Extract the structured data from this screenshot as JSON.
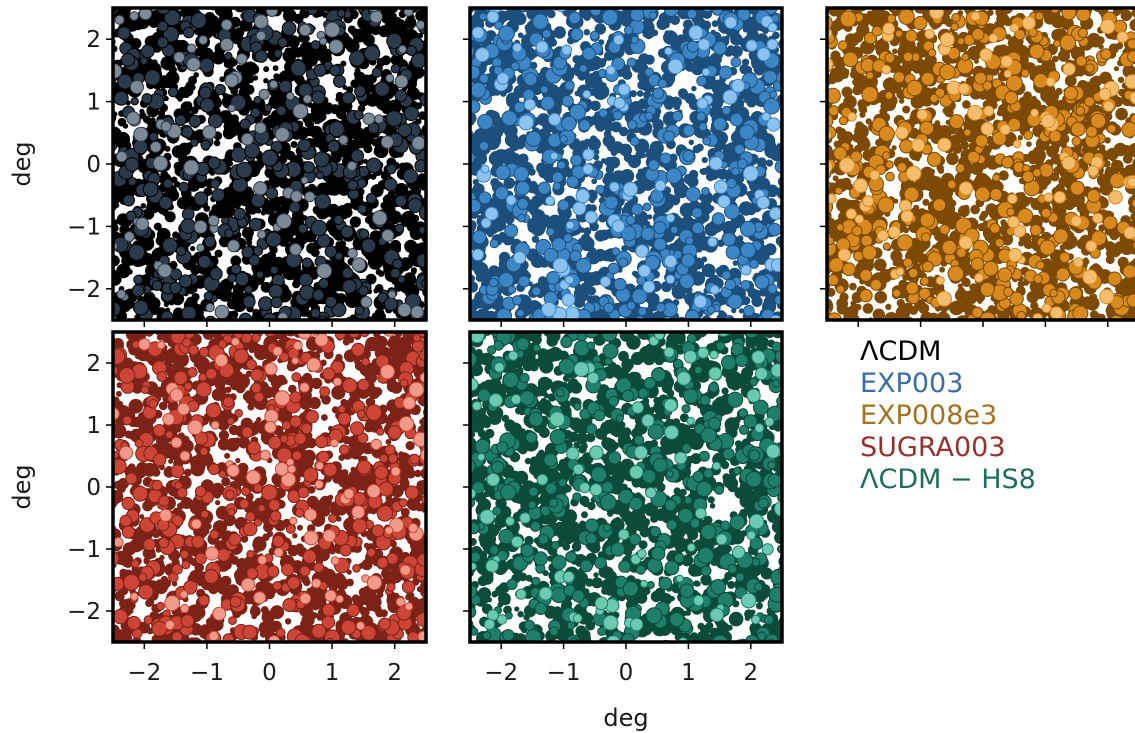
{
  "chart_data": [
    {
      "type": "scatter",
      "series": [
        {
          "name": "ΛCDM",
          "colors": {
            "dark": "#000000",
            "mid": "#2b3a4a",
            "light": "#7d8a96"
          }
        }
      ],
      "xlim": [
        -2.5,
        2.5
      ],
      "ylim": [
        -2.5,
        2.5
      ],
      "xticks": [
        -2,
        -1,
        0,
        1,
        2
      ],
      "yticks": [
        -2,
        -1,
        0,
        1,
        2
      ],
      "ylabel": "deg",
      "xlabel": "",
      "show_yticklabels": true,
      "show_xticklabels": false,
      "seed": 11
    },
    {
      "type": "scatter",
      "series": [
        {
          "name": "EXP003",
          "colors": {
            "dark": "#1d4f7c",
            "mid": "#3d86c6",
            "light": "#8cc3ee"
          }
        }
      ],
      "xlim": [
        -2.5,
        2.5
      ],
      "ylim": [
        -2.5,
        2.5
      ],
      "xticks": [
        -2,
        -1,
        0,
        1,
        2
      ],
      "yticks": [
        -2,
        -1,
        0,
        1,
        2
      ],
      "ylabel": "",
      "xlabel": "",
      "show_yticklabels": false,
      "show_xticklabels": false,
      "seed": 23
    },
    {
      "type": "scatter",
      "series": [
        {
          "name": "EXP008e3",
          "colors": {
            "dark": "#7c4a05",
            "mid": "#d98a1e",
            "light": "#f4be6e"
          }
        }
      ],
      "xlim": [
        -2.5,
        2.5
      ],
      "ylim": [
        -2.5,
        2.5
      ],
      "xticks": [
        -2,
        -1,
        0,
        1,
        2
      ],
      "yticks": [
        -2,
        -1,
        0,
        1,
        2
      ],
      "ylabel": "",
      "xlabel": "",
      "show_yticklabels": false,
      "show_xticklabels": false,
      "seed": 37
    },
    {
      "type": "scatter",
      "series": [
        {
          "name": "SUGRA003",
          "colors": {
            "dark": "#7c2216",
            "mid": "#cc4536",
            "light": "#f29a89"
          }
        }
      ],
      "xlim": [
        -2.5,
        2.5
      ],
      "ylim": [
        -2.5,
        2.5
      ],
      "xticks": [
        -2,
        -1,
        0,
        1,
        2
      ],
      "yticks": [
        -2,
        -1,
        0,
        1,
        2
      ],
      "ylabel": "deg",
      "xlabel": "",
      "show_yticklabels": true,
      "show_xticklabels": true,
      "seed": 51
    },
    {
      "type": "scatter",
      "series": [
        {
          "name": "ΛCDM − HS8",
          "colors": {
            "dark": "#0c4a3a",
            "mid": "#1f7f68",
            "light": "#6ccab0"
          }
        }
      ],
      "xlim": [
        -2.5,
        2.5
      ],
      "ylim": [
        -2.5,
        2.5
      ],
      "xticks": [
        -2,
        -1,
        0,
        1,
        2
      ],
      "yticks": [
        -2,
        -1,
        0,
        1,
        2
      ],
      "ylabel": "",
      "xlabel": "deg",
      "show_yticklabels": false,
      "show_xticklabels": true,
      "seed": 67
    }
  ],
  "tick_labels": [
    "−2",
    "−1",
    "0",
    "1",
    "2"
  ],
  "legend": {
    "placement": "lower-right",
    "items": [
      {
        "label": "ΛCDM",
        "color": "#000000"
      },
      {
        "label": "EXP003",
        "color": "#3a6ea5"
      },
      {
        "label": "EXP008e3",
        "color": "#a5721f"
      },
      {
        "label": "SUGRA003",
        "color": "#94312a"
      },
      {
        "label": "ΛCDM − HS8",
        "color": "#1f6e5c"
      }
    ]
  }
}
